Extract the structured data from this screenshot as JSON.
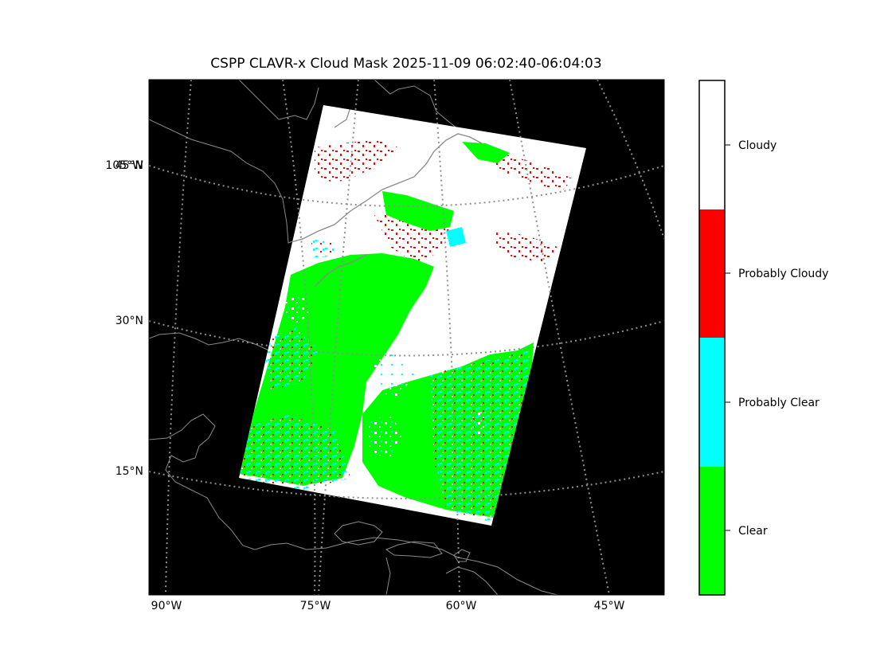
{
  "title": "CSPP CLAVR-x Cloud Mask 2025-11-09 06:02:40-06:04:03",
  "map": {
    "lat_labels": [
      "45°N",
      "30°N",
      "15°N"
    ],
    "overlap_lon_label": "105°W",
    "lon_labels": [
      "90°W",
      "75°W",
      "60°W",
      "45°W"
    ],
    "background": "#000000",
    "coastline_color": "#808080",
    "gridline_color": "#888888"
  },
  "colorbar": {
    "categories": [
      {
        "label": "Cloudy",
        "color": "#ffffff"
      },
      {
        "label": "Probably Cloudy",
        "color": "#ff0000"
      },
      {
        "label": "Probably Clear",
        "color": "#00ffff"
      },
      {
        "label": "Clear",
        "color": "#00ff00"
      }
    ]
  }
}
